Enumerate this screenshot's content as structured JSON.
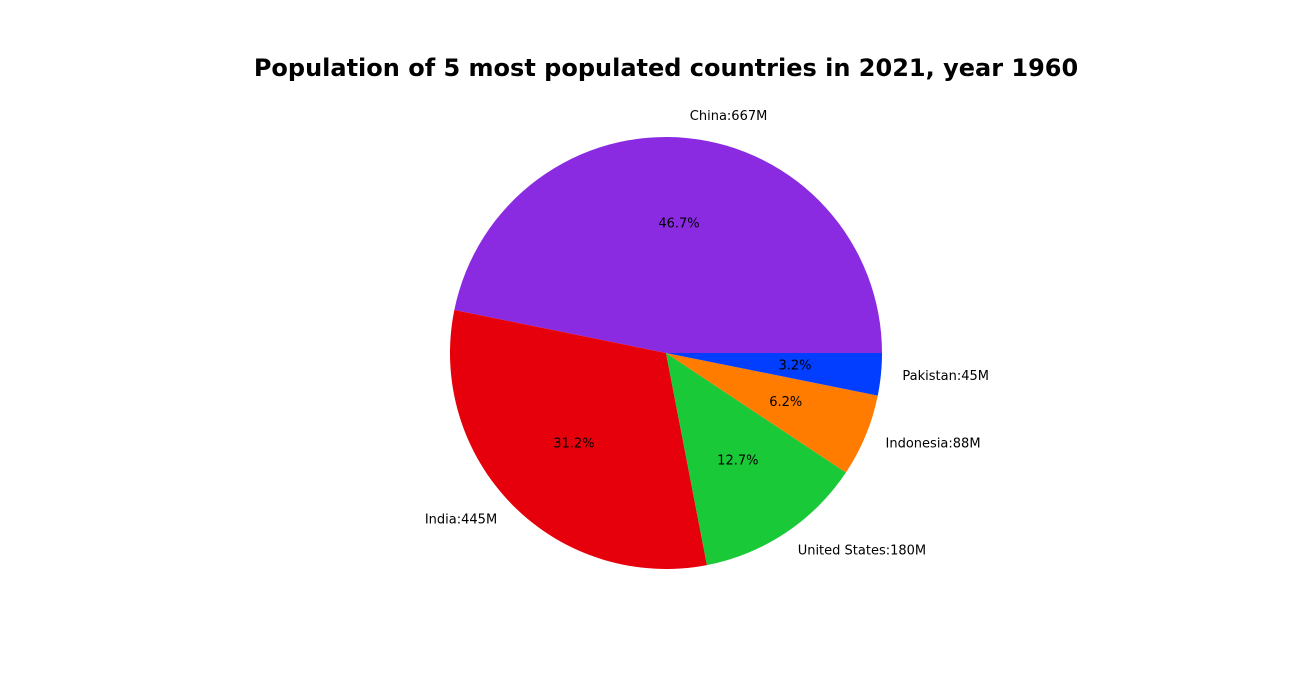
{
  "chart_data": {
    "type": "pie",
    "title": "Population of 5 most populated countries in 2021, year 1960",
    "categories": [
      "China",
      "India",
      "United States",
      "Indonesia",
      "Pakistan"
    ],
    "values": [
      667,
      445,
      180,
      88,
      45
    ],
    "unit": "M",
    "labels": [
      "China:667M",
      "India:445M",
      "United States:180M",
      "Indonesia:88M",
      "Pakistan:45M"
    ],
    "percentages": [
      "46.7%",
      "31.2%",
      "12.7%",
      "6.2%",
      "3.2%"
    ],
    "colors": [
      "#8a2be2",
      "#e6000b",
      "#1ac938",
      "#ff7c00",
      "#023eff"
    ],
    "start_angle_deg": 0,
    "direction": "counterclockwise",
    "legend": "none"
  }
}
